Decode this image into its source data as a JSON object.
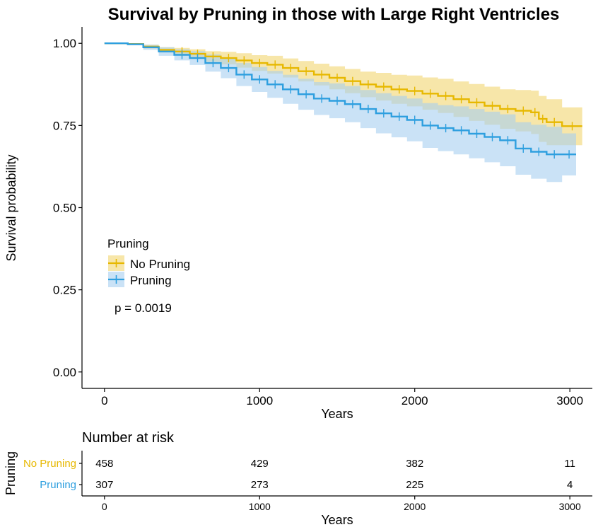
{
  "chart_data": {
    "type": "line",
    "subtype": "kaplan-meier",
    "title": "Survival by Pruning in those with Large Right Ventricles",
    "xlabel": "Years",
    "ylabel": "Survival probability",
    "xlim": [
      -145,
      3145
    ],
    "ylim": [
      -0.05,
      1.05
    ],
    "xticks": [
      0,
      1000,
      2000,
      3000
    ],
    "yticks": [
      0.0,
      0.25,
      0.5,
      0.75,
      1.0
    ],
    "ytick_labels": [
      "0.00",
      "0.25",
      "0.50",
      "0.75",
      "1.00"
    ],
    "grid": false,
    "legend": {
      "title": "Pruning",
      "placement": "left-center",
      "entries": [
        "No Pruning",
        "Pruning"
      ]
    },
    "annotation": "p = 0.0019",
    "series": [
      {
        "name": "No Pruning",
        "color": "#E7B800",
        "ci_color": "#F2D66F",
        "x": [
          0,
          150,
          250,
          350,
          450,
          550,
          650,
          750,
          850,
          950,
          1050,
          1150,
          1250,
          1350,
          1450,
          1550,
          1650,
          1750,
          1850,
          1950,
          2050,
          2150,
          2250,
          2350,
          2450,
          2550,
          2650,
          2750,
          2800,
          2850,
          2950,
          3080
        ],
        "y": [
          1.0,
          0.998,
          0.99,
          0.98,
          0.975,
          0.968,
          0.96,
          0.955,
          0.948,
          0.94,
          0.935,
          0.925,
          0.915,
          0.905,
          0.895,
          0.885,
          0.875,
          0.868,
          0.86,
          0.855,
          0.847,
          0.84,
          0.83,
          0.82,
          0.81,
          0.8,
          0.795,
          0.79,
          0.77,
          0.76,
          0.748,
          0.748
        ],
        "lower": [
          1.0,
          0.996,
          0.984,
          0.972,
          0.964,
          0.954,
          0.944,
          0.936,
          0.926,
          0.916,
          0.908,
          0.896,
          0.884,
          0.872,
          0.86,
          0.848,
          0.836,
          0.826,
          0.816,
          0.808,
          0.798,
          0.788,
          0.776,
          0.764,
          0.752,
          0.74,
          0.732,
          0.724,
          0.7,
          0.69,
          0.69,
          0.69
        ],
        "upper": [
          1.0,
          1.0,
          0.996,
          0.988,
          0.986,
          0.982,
          0.976,
          0.974,
          0.97,
          0.964,
          0.962,
          0.954,
          0.946,
          0.938,
          0.93,
          0.922,
          0.914,
          0.91,
          0.904,
          0.902,
          0.896,
          0.892,
          0.884,
          0.876,
          0.868,
          0.86,
          0.858,
          0.856,
          0.84,
          0.83,
          0.805,
          0.805
        ]
      },
      {
        "name": "Pruning",
        "color": "#2E9FDF",
        "ci_color": "#A6CEF0",
        "x": [
          0,
          150,
          250,
          350,
          450,
          550,
          650,
          750,
          850,
          950,
          1050,
          1150,
          1250,
          1350,
          1450,
          1550,
          1650,
          1750,
          1850,
          1950,
          2050,
          2150,
          2250,
          2350,
          2450,
          2550,
          2650,
          2750,
          2850,
          2950,
          3040
        ],
        "y": [
          1.0,
          0.997,
          0.988,
          0.975,
          0.965,
          0.955,
          0.94,
          0.925,
          0.905,
          0.89,
          0.875,
          0.86,
          0.845,
          0.832,
          0.825,
          0.815,
          0.8,
          0.787,
          0.777,
          0.767,
          0.75,
          0.742,
          0.735,
          0.725,
          0.715,
          0.705,
          0.68,
          0.67,
          0.662,
          0.662,
          0.662
        ],
        "lower": [
          1.0,
          0.994,
          0.98,
          0.962,
          0.948,
          0.934,
          0.914,
          0.894,
          0.87,
          0.852,
          0.834,
          0.816,
          0.798,
          0.782,
          0.772,
          0.76,
          0.742,
          0.726,
          0.714,
          0.702,
          0.682,
          0.672,
          0.662,
          0.65,
          0.638,
          0.626,
          0.6,
          0.588,
          0.578,
          0.598,
          0.598
        ],
        "upper": [
          1.0,
          1.0,
          0.996,
          0.988,
          0.982,
          0.976,
          0.966,
          0.956,
          0.94,
          0.928,
          0.916,
          0.904,
          0.892,
          0.882,
          0.878,
          0.87,
          0.858,
          0.848,
          0.84,
          0.832,
          0.818,
          0.812,
          0.808,
          0.8,
          0.792,
          0.784,
          0.76,
          0.752,
          0.746,
          0.726,
          0.726
        ]
      }
    ]
  },
  "risk_table": {
    "title": "Number at risk",
    "ylabel": "Pruning",
    "xlabel": "Years",
    "xticks": [
      0,
      1000,
      2000,
      3000
    ],
    "rows": [
      {
        "name": "No Pruning",
        "color": "#E7B800",
        "values": [
          458,
          429,
          382,
          11
        ]
      },
      {
        "name": "Pruning",
        "color": "#2E9FDF",
        "values": [
          307,
          273,
          225,
          4
        ]
      }
    ]
  }
}
